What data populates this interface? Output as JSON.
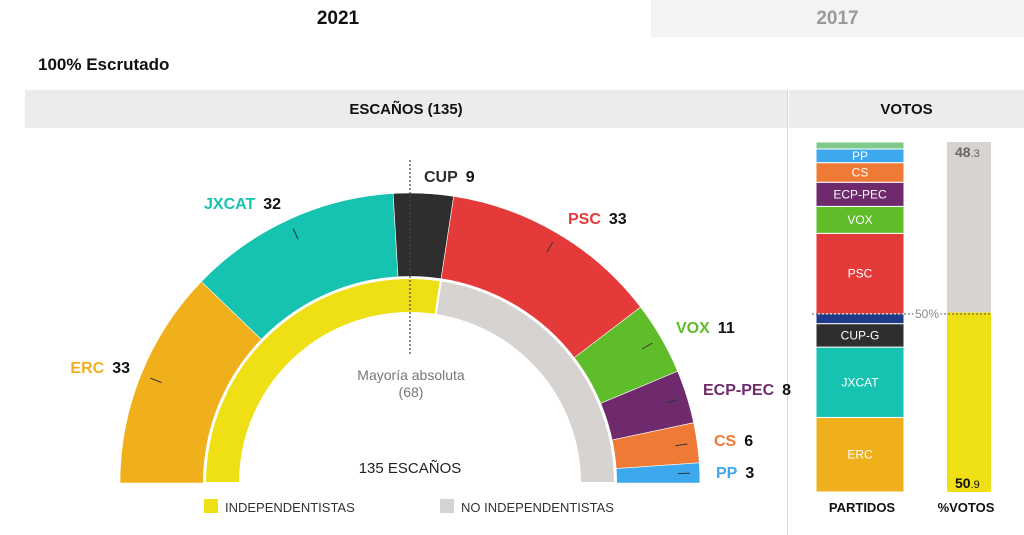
{
  "tabs": {
    "active": "2021",
    "other": "2017"
  },
  "scrutiny_label": "100% Escrutado",
  "seats_header": "ESCAÑOS (135)",
  "votes_header": "VOTOS",
  "majority": {
    "label": "Mayoría absoluta",
    "value": "(68)"
  },
  "total_label": "135 ESCAÑOS",
  "legend": {
    "independentistas": "INDEPENDENTISTAS",
    "no_independentistas": "NO INDEPENDENTISTAS"
  },
  "bar_labels": {
    "parties": "PARTIDOS",
    "pct": "%VOTOS",
    "fifty": "50%"
  },
  "colors": {
    "ERC": "#f0b01c",
    "JXCAT": "#16c2b0",
    "CUP": "#2e2e2e",
    "PSC": "#e53a3a",
    "VOX": "#5fbd2a",
    "ECP-PEC": "#6e2a6c",
    "CS": "#ee7a36",
    "PP": "#3ea8ef",
    "independentistas": "#eee015",
    "no_independentistas": "#d7d3d1"
  },
  "chart_data": [
    {
      "type": "semicircle",
      "title": "ESCAÑOS (135)",
      "parties": [
        {
          "name": "ERC",
          "seats": 33
        },
        {
          "name": "JXCAT",
          "seats": 32
        },
        {
          "name": "CUP",
          "seats": 9
        },
        {
          "name": "PSC",
          "seats": 33
        },
        {
          "name": "VOX",
          "seats": 11
        },
        {
          "name": "ECP-PEC",
          "seats": 8
        },
        {
          "name": "CS",
          "seats": 6
        },
        {
          "name": "PP",
          "seats": 3
        }
      ],
      "blocs": [
        {
          "name": "INDEPENDENTISTAS",
          "seats": 74
        },
        {
          "name": "NO INDEPENDENTISTAS",
          "seats": 61
        }
      ],
      "total": 135,
      "majority": 68
    },
    {
      "type": "stacked-bar",
      "title": "VOTOS",
      "xlabel": "PARTIDOS",
      "segments_bottom_to_top": [
        {
          "name": "ERC",
          "value": 21.3
        },
        {
          "name": "JXCAT",
          "value": 20.1
        },
        {
          "name": "CUP-G",
          "value": 6.7
        },
        {
          "name": "",
          "value": 2.8
        },
        {
          "name": "PSC",
          "value": 23.0
        },
        {
          "name": "VOX",
          "value": 7.7
        },
        {
          "name": "ECP-PEC",
          "value": 6.9
        },
        {
          "name": "CS",
          "value": 5.6
        },
        {
          "name": "PP",
          "value": 3.9
        },
        {
          "name": "",
          "value": 2.0
        }
      ],
      "reference_line": 50
    },
    {
      "type": "stacked-bar",
      "title": "VOTOS",
      "xlabel": "%VOTOS",
      "segments_bottom_to_top": [
        {
          "name": "INDEPENDENTISTAS",
          "value": 50.9,
          "label_int": "50",
          "label_dec": ".9"
        },
        {
          "name": "NO INDEPENDENTISTAS",
          "value": 48.3,
          "label_int": "48",
          "label_dec": ".3"
        }
      ],
      "reference_line": 50
    }
  ]
}
